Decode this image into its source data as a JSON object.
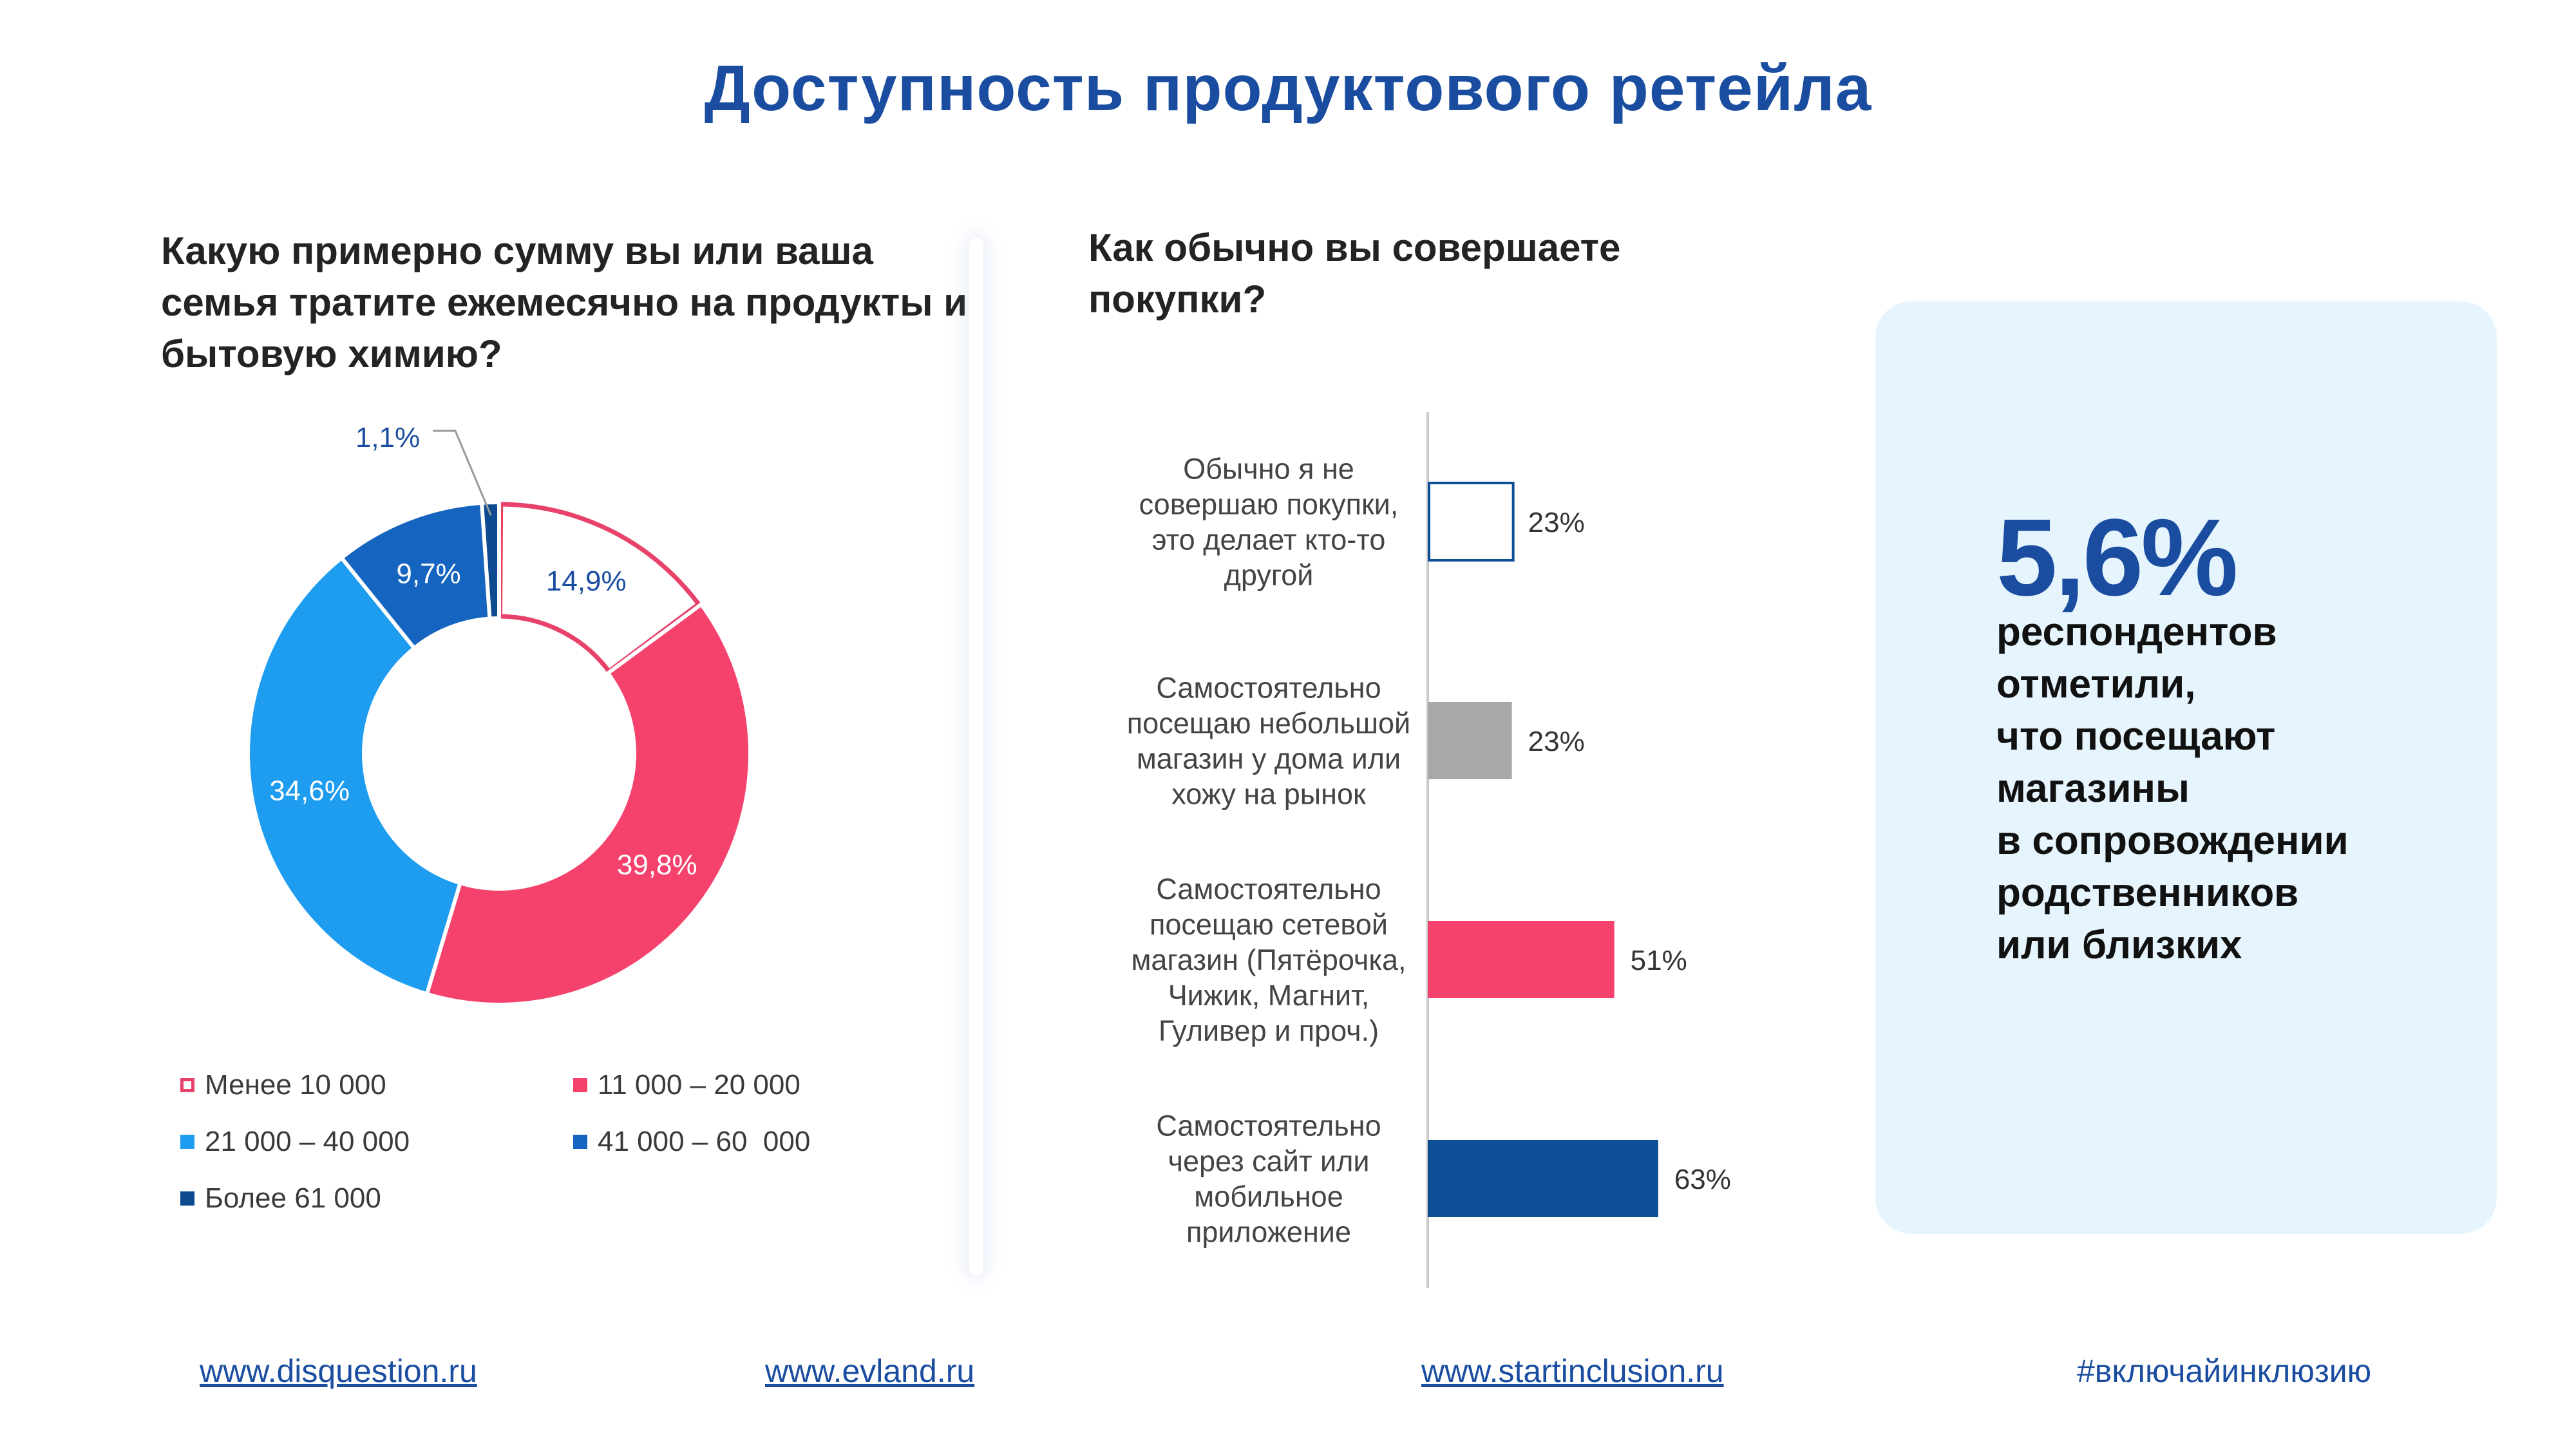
{
  "title": "Доступность продуктового ретейла",
  "question1": "Какую примерно сумму вы или ваша семья тратите ежемесячно на продукты и бытовую химию?",
  "question2": "Как обычно вы совершаете покупки?",
  "chart_data": [
    {
      "type": "pie",
      "donut": true,
      "title": "Какую примерно сумму вы или ваша семья тратите ежемесячно на продукты и бытовую химию?",
      "categories": [
        "Менее 10 000",
        "11 000 – 20 000",
        "21 000 – 40 000",
        "41 000 – 60  000",
        "Более 61 000"
      ],
      "values": [
        14.9,
        39.8,
        34.6,
        9.7,
        1.1
      ],
      "labels": [
        "14,9%",
        "39,8%",
        "34,6%",
        "9,7%",
        "1,1%"
      ],
      "colors": [
        "#ffffff",
        "#f5426c",
        "#1e9cf0",
        "#1565c0",
        "#0d4a8f"
      ],
      "outline_colors": [
        "#e8426b",
        null,
        null,
        null,
        null
      ],
      "label_colors": [
        "#1a4da0",
        "#ffffff",
        "#ffffff",
        "#ffffff",
        "#1a4da0"
      ],
      "legend": "bottom"
    },
    {
      "type": "bar",
      "orientation": "horizontal",
      "title": "Как обычно вы совершаете покупки?",
      "categories": [
        "Обычно я не совершаю покупки, это делает кто-то другой",
        "Самостоятельно посещаю небольшой магазин у дома или хожу на рынок",
        "Самостоятельно посещаю сетевой магазин (Пятёрочка, Чижик, Магнит, Гуливер и проч.)",
        "Самостоятельно через сайт или мобильное приложение"
      ],
      "category_lines": [
        [
          "Обычно я не",
          "совершаю покупки,",
          "это делает кто-то",
          "другой"
        ],
        [
          "Самостоятельно",
          "посещаю небольшой",
          "магазин у дома или",
          "хожу на рынок"
        ],
        [
          "Самостоятельно",
          "посещаю сетевой",
          "магазин (Пятёрочка,",
          "Чижик, Магнит,",
          "Гуливер и проч.)"
        ],
        [
          "Самостоятельно",
          "через сайт или",
          "мобильное",
          "приложение"
        ]
      ],
      "values": [
        23,
        23,
        51,
        63
      ],
      "labels": [
        "23%",
        "23%",
        "51%",
        "63%"
      ],
      "colors": [
        "#ffffff",
        "#a8a8a8",
        "#f5426c",
        "#0d4f96"
      ],
      "outline_colors": [
        "#0d4f96",
        null,
        null,
        null
      ],
      "xlim": [
        0,
        100
      ]
    }
  ],
  "callout": {
    "big_number": "5,6%",
    "text": "респондентов отметили, что посещают магазины в сопровождении родственников или близких",
    "lines": [
      "респондентов",
      "отметили,",
      "что посещают",
      "магазины",
      "в сопровождении",
      "родственников",
      "или близких"
    ]
  },
  "footer": {
    "link1": "www.disquestion.ru",
    "link2": "www.evland.ru",
    "link3": "www.startinclusion.ru",
    "hashtag": "#включайинклюзию"
  }
}
